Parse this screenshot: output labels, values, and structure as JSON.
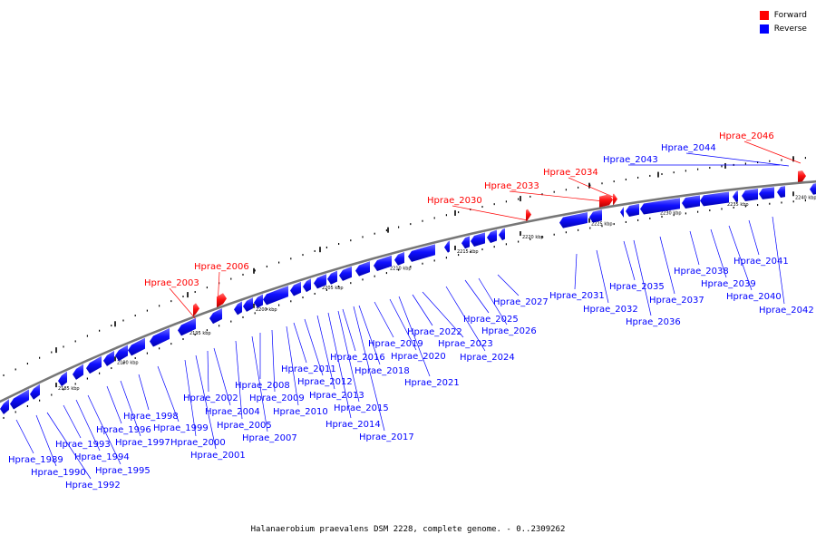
{
  "legend": {
    "forward_label": "Forward",
    "reverse_label": "Reverse",
    "forward_color": "#ff0000",
    "reverse_color": "#0000ff"
  },
  "caption": "Halanaerobium praevalens DSM 2228, complete genome. - 0..2309262",
  "scale": {
    "unit_label": "kbp",
    "marks": [
      {
        "label": "2185 kbp"
      },
      {
        "label": "2190 kbp"
      },
      {
        "label": "2195 kbp"
      },
      {
        "label": "2200 kbp"
      },
      {
        "label": "2205 kbp"
      },
      {
        "label": "2210 kbp"
      },
      {
        "label": "2215 kbp"
      },
      {
        "label": "2220 kbp"
      },
      {
        "label": "2225 kbp"
      },
      {
        "label": "2230 kbp"
      },
      {
        "label": "2235 kbp"
      },
      {
        "label": "2240 kbp"
      }
    ]
  },
  "forward_genes": [
    {
      "name": "Hprae_2003"
    },
    {
      "name": "Hprae_2006"
    },
    {
      "name": "Hprae_2030"
    },
    {
      "name": "Hprae_2033"
    },
    {
      "name": "Hprae_2034"
    },
    {
      "name": "Hprae_2046"
    }
  ],
  "reverse_genes_top": [
    {
      "name": "Hprae_2043"
    },
    {
      "name": "Hprae_2044"
    }
  ],
  "reverse_genes_bottom": [
    {
      "name": "Hprae_1989"
    },
    {
      "name": "Hprae_1990"
    },
    {
      "name": "Hprae_1992"
    },
    {
      "name": "Hprae_1993"
    },
    {
      "name": "Hprae_1994"
    },
    {
      "name": "Hprae_1995"
    },
    {
      "name": "Hprae_1996"
    },
    {
      "name": "Hprae_1997"
    },
    {
      "name": "Hprae_1998"
    },
    {
      "name": "Hprae_1999"
    },
    {
      "name": "Hprae_2000"
    },
    {
      "name": "Hprae_2001"
    },
    {
      "name": "Hprae_2002"
    },
    {
      "name": "Hprae_2004"
    },
    {
      "name": "Hprae_2005"
    },
    {
      "name": "Hprae_2007"
    },
    {
      "name": "Hprae_2008"
    },
    {
      "name": "Hprae_2009"
    },
    {
      "name": "Hprae_2010"
    },
    {
      "name": "Hprae_2011"
    },
    {
      "name": "Hprae_2012"
    },
    {
      "name": "Hprae_2013"
    },
    {
      "name": "Hprae_2014"
    },
    {
      "name": "Hprae_2015"
    },
    {
      "name": "Hprae_2016"
    },
    {
      "name": "Hprae_2017"
    },
    {
      "name": "Hprae_2018"
    },
    {
      "name": "Hprae_2019"
    },
    {
      "name": "Hprae_2020"
    },
    {
      "name": "Hprae_2021"
    },
    {
      "name": "Hprae_2022"
    },
    {
      "name": "Hprae_2023"
    },
    {
      "name": "Hprae_2024"
    },
    {
      "name": "Hprae_2025"
    },
    {
      "name": "Hprae_2026"
    },
    {
      "name": "Hprae_2027"
    },
    {
      "name": "Hprae_2031"
    },
    {
      "name": "Hprae_2032"
    },
    {
      "name": "Hprae_2035"
    },
    {
      "name": "Hprae_2036"
    },
    {
      "name": "Hprae_2037"
    },
    {
      "name": "Hprae_2038"
    },
    {
      "name": "Hprae_2039"
    },
    {
      "name": "Hprae_2040"
    },
    {
      "name": "Hprae_2041"
    },
    {
      "name": "Hprae_2042"
    }
  ]
}
